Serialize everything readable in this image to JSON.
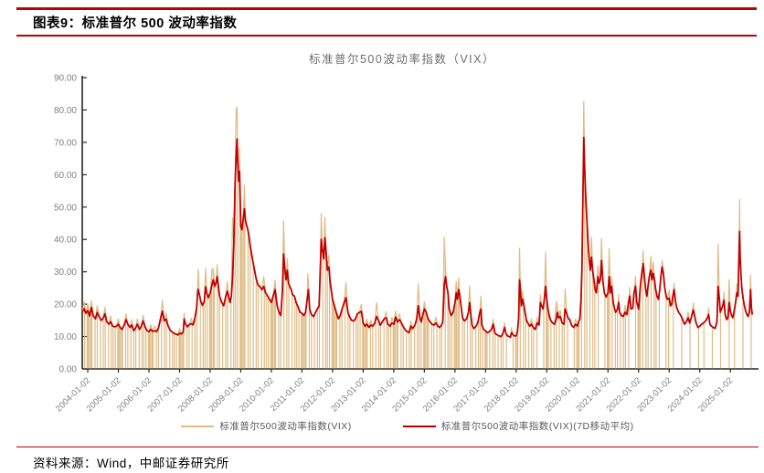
{
  "figure": {
    "caption": "图表9：标准普尔 500 波动率指数"
  },
  "source": {
    "label": "资料来源：Wind，中邮证券研究所"
  },
  "rule_color": "#c00000",
  "chart_data": {
    "type": "line",
    "title": "标准普尔500波动率指数（VIX）",
    "ylim": [
      0,
      90
    ],
    "y_tick_labels": [
      "90.00",
      "80.00",
      "70.00",
      "60.00",
      "50.00",
      "40.00",
      "30.00",
      "20.00",
      "10.00",
      "0.00"
    ],
    "x_tick_labels": [
      "2004-01-02",
      "2005-01-02",
      "2006-01-02",
      "2007-01-02",
      "2008-01-02",
      "2009-01-02",
      "2010-01-02",
      "2011-01-02",
      "2012-01-02",
      "2013-01-02",
      "2014-01-02",
      "2015-01-02",
      "2016-01-02",
      "2017-01-02",
      "2018-01-02",
      "2019-01-02",
      "2020-01-02",
      "2021-01-02",
      "2022-01-02",
      "2023-01-02",
      "2024-01-02",
      "2025-01-02"
    ],
    "x_start": 2003.82,
    "x_end": 2025.74,
    "colors": {
      "raw": "#dfbb85",
      "ma": "#c00000",
      "axis": "#262626",
      "tick_text": "#808080",
      "title_text": "#6e6e6e"
    },
    "legend_position": "bottom",
    "grid": false,
    "series": [
      {
        "name": "标准普尔500波动率指数(VIX)",
        "role": "raw",
        "color": "#dfbb85",
        "local_max_boost": {
          "frac": 0.12,
          "min": 1.5
        },
        "extra_peaks": [
          2004.12,
          21.1,
          2006.44,
          21.2,
          2007.61,
          30.8,
          2007.85,
          31.1,
          2008.055,
          31.0,
          2008.235,
          32.2,
          2008.735,
          46.7,
          2008.845,
          80.1,
          2008.885,
          80.9,
          2009.125,
          56.7,
          2010.405,
          45.8,
          2011.19,
          29.4,
          2011.635,
          48.0,
          2011.755,
          46.9,
          2012.445,
          26.7,
          2013.445,
          20.5,
          2014.805,
          26.3,
          2015.655,
          40.7,
          2016.045,
          27.0,
          2016.125,
          28.1,
          2016.485,
          25.8,
          2016.855,
          22.5,
          2018.115,
          37.3,
          2018.965,
          36.1,
          2019.315,
          20.8,
          2019.605,
          24.6,
          2020.205,
          82.7,
          2020.465,
          40.8,
          2020.795,
          40.3,
          2021.045,
          37.2,
          2021.905,
          28.6,
          2022.155,
          36.5,
          2022.405,
          34.8,
          2022.775,
          33.6,
          2023.165,
          26.5,
          2024.605,
          38.6,
          2024.965,
          27.6,
          2025.295,
          52.3,
          2025.665,
          29.0
        ],
        "zero_drop_groups": [
          {
            "years": [
              2003,
              2016
            ],
            "offsets": [
              0.01,
              0.05,
              0.1,
              0.135,
              0.24,
              0.31,
              0.41,
              0.505,
              0.57,
              0.68,
              0.77,
              0.83,
              0.9,
              0.982
            ]
          },
          {
            "years": [
              2017,
              2022
            ],
            "offsets": [
              0.01,
              0.05,
              0.135,
              0.24,
              0.31,
              0.41,
              0.505,
              0.57,
              0.68,
              0.9,
              0.982
            ]
          },
          {
            "years": [
              2023,
              2025
            ],
            "offsets": [
              0.135,
              0.41,
              0.68,
              0.96
            ]
          }
        ]
      },
      {
        "name": "标准普尔500波动率指数(VIX)(7D移动平均)",
        "role": "ma",
        "color": "#c00000",
        "points": [
          2003.82,
          17.5,
          2003.88,
          18.6,
          2003.94,
          17.2,
          2004.0,
          18.0,
          2004.06,
          16.4,
          2004.12,
          19.0,
          2004.18,
          16.4,
          2004.25,
          15.5,
          2004.31,
          17.4,
          2004.38,
          16.0,
          2004.44,
          15.0,
          2004.5,
          15.6,
          2004.56,
          17.0,
          2004.62,
          14.6,
          2004.69,
          13.8,
          2004.75,
          14.6,
          2004.81,
          13.2,
          2004.88,
          13.0,
          2004.94,
          13.2,
          2005.0,
          13.8,
          2005.06,
          12.8,
          2005.12,
          12.2,
          2005.19,
          13.6,
          2005.25,
          15.2,
          2005.31,
          13.8,
          2005.38,
          12.8,
          2005.44,
          13.6,
          2005.5,
          11.8,
          2005.56,
          12.6,
          2005.62,
          13.8,
          2005.69,
          12.2,
          2005.75,
          13.2,
          2005.81,
          14.8,
          2005.88,
          12.8,
          2005.94,
          11.8,
          2006.0,
          11.5,
          2006.06,
          12.2,
          2006.12,
          11.6,
          2006.19,
          11.8,
          2006.25,
          11.5,
          2006.31,
          12.6,
          2006.38,
          15.6,
          2006.44,
          17.8,
          2006.5,
          14.8,
          2006.56,
          15.4,
          2006.62,
          13.4,
          2006.69,
          12.0,
          2006.75,
          11.5,
          2006.81,
          11.0,
          2006.88,
          10.8,
          2006.94,
          10.5,
          2007.0,
          11.0,
          2007.06,
          10.8,
          2007.12,
          11.4,
          2007.15,
          15.4,
          2007.19,
          14.0,
          2007.25,
          13.0,
          2007.31,
          13.6,
          2007.38,
          14.0,
          2007.44,
          13.6,
          2007.5,
          15.6,
          2007.56,
          19.0,
          2007.6,
          24.6,
          2007.65,
          23.0,
          2007.69,
          21.0,
          2007.75,
          19.6,
          2007.81,
          21.0,
          2007.85,
          25.4,
          2007.9,
          23.0,
          2007.94,
          22.0,
          2008.0,
          23.5,
          2008.06,
          26.0,
          2008.1,
          27.5,
          2008.15,
          25.5,
          2008.19,
          26.5,
          2008.23,
          28.5,
          2008.27,
          25.5,
          2008.31,
          22.5,
          2008.38,
          20.5,
          2008.44,
          19.5,
          2008.5,
          22.0,
          2008.56,
          24.0,
          2008.6,
          22.5,
          2008.65,
          20.5,
          2008.69,
          22.5,
          2008.73,
          28.0,
          2008.77,
          38.0,
          2008.81,
          56.0,
          2008.85,
          66.0,
          2008.88,
          71.0,
          2008.9,
          64.0,
          2008.93,
          58.0,
          2008.96,
          61.0,
          2009.0,
          44.0,
          2009.04,
          43.0,
          2009.08,
          46.5,
          2009.12,
          49.5,
          2009.15,
          46.0,
          2009.19,
          44.5,
          2009.23,
          43.0,
          2009.27,
          41.0,
          2009.31,
          38.0,
          2009.38,
          34.0,
          2009.44,
          31.0,
          2009.5,
          28.0,
          2009.56,
          26.0,
          2009.62,
          25.5,
          2009.69,
          24.5,
          2009.75,
          25.5,
          2009.81,
          23.5,
          2009.88,
          22.5,
          2009.94,
          21.5,
          2010.0,
          20.5,
          2010.06,
          22.5,
          2010.12,
          24.5,
          2010.19,
          19.5,
          2010.25,
          17.5,
          2010.31,
          16.5,
          2010.36,
          24.0,
          2010.4,
          35.5,
          2010.44,
          31.0,
          2010.48,
          27.5,
          2010.52,
          30.5,
          2010.56,
          26.5,
          2010.6,
          25.5,
          2010.65,
          24.5,
          2010.69,
          23.0,
          2010.75,
          22.5,
          2010.81,
          20.5,
          2010.88,
          19.0,
          2010.94,
          17.5,
          2011.0,
          17.2,
          2011.06,
          16.5,
          2011.12,
          17.5,
          2011.17,
          21.5,
          2011.21,
          24.5,
          2011.25,
          18.5,
          2011.31,
          16.8,
          2011.38,
          16.2,
          2011.44,
          17.5,
          2011.5,
          18.5,
          2011.56,
          19.5,
          2011.6,
          31.0,
          2011.63,
          40.0,
          2011.67,
          36.5,
          2011.71,
          34.0,
          2011.75,
          40.5,
          2011.79,
          36.0,
          2011.83,
          30.5,
          2011.88,
          31.5,
          2011.92,
          27.0,
          2012.0,
          21.5,
          2012.06,
          19.5,
          2012.12,
          17.5,
          2012.19,
          15.5,
          2012.25,
          16.5,
          2012.31,
          18.5,
          2012.38,
          20.5,
          2012.44,
          22.0,
          2012.5,
          17.5,
          2012.56,
          16.0,
          2012.62,
          15.0,
          2012.69,
          14.8,
          2012.75,
          15.5,
          2012.81,
          17.0,
          2012.88,
          17.5,
          2012.94,
          17.8,
          2013.0,
          14.2,
          2013.06,
          13.2,
          2013.12,
          13.8,
          2013.19,
          12.8,
          2013.25,
          13.5,
          2013.31,
          13.2,
          2013.38,
          14.2,
          2013.44,
          16.2,
          2013.5,
          15.0,
          2013.56,
          13.5,
          2013.62,
          14.5,
          2013.69,
          15.5,
          2013.75,
          15.8,
          2013.81,
          13.8,
          2013.88,
          13.2,
          2013.94,
          14.2,
          2014.0,
          13.8,
          2014.06,
          16.0,
          2014.12,
          14.5,
          2014.19,
          15.2,
          2014.25,
          14.2,
          2014.31,
          13.0,
          2014.38,
          12.0,
          2014.44,
          11.5,
          2014.5,
          11.2,
          2014.56,
          13.2,
          2014.62,
          12.5,
          2014.69,
          13.5,
          2014.75,
          15.5,
          2014.8,
          19.5,
          2014.85,
          16.0,
          2014.9,
          14.5,
          2014.94,
          16.5,
          2015.0,
          18.5,
          2015.06,
          17.5,
          2015.12,
          15.5,
          2015.19,
          14.5,
          2015.25,
          13.8,
          2015.31,
          13.5,
          2015.38,
          14.2,
          2015.44,
          13.2,
          2015.5,
          12.8,
          2015.56,
          13.5,
          2015.6,
          14.5,
          2015.65,
          26.0,
          2015.69,
          28.5,
          2015.73,
          25.5,
          2015.77,
          23.5,
          2015.81,
          18.5,
          2015.88,
          16.5,
          2015.94,
          17.5,
          2016.0,
          20.5,
          2016.04,
          23.5,
          2016.08,
          21.5,
          2016.12,
          24.5,
          2016.16,
          22.5,
          2016.21,
          18.5,
          2016.25,
          15.8,
          2016.31,
          14.8,
          2016.38,
          15.5,
          2016.44,
          17.5,
          2016.48,
          20.5,
          2016.52,
          16.5,
          2016.56,
          13.5,
          2016.62,
          12.5,
          2016.69,
          13.2,
          2016.75,
          14.5,
          2016.81,
          17.5,
          2016.85,
          18.5,
          2016.88,
          13.5,
          2016.94,
          12.2,
          2017.0,
          11.8,
          2017.06,
          11.2,
          2017.12,
          11.5,
          2017.19,
          12.2,
          2017.25,
          13.8,
          2017.31,
          11.0,
          2017.38,
          10.5,
          2017.44,
          10.2,
          2017.5,
          10.0,
          2017.56,
          10.8,
          2017.62,
          12.8,
          2017.67,
          10.8,
          2017.72,
          10.2,
          2017.77,
          10.0,
          2017.81,
          9.8,
          2017.85,
          11.2,
          2017.9,
          10.5,
          2017.94,
          10.2,
          2018.0,
          10.2,
          2018.04,
          11.5,
          2018.08,
          15.5,
          2018.11,
          27.5,
          2018.14,
          24.5,
          2018.17,
          19.5,
          2018.21,
          21.5,
          2018.25,
          19.8,
          2018.29,
          17.5,
          2018.33,
          15.2,
          2018.38,
          14.2,
          2018.44,
          13.2,
          2018.5,
          13.8,
          2018.56,
          12.8,
          2018.62,
          12.2,
          2018.69,
          14.2,
          2018.75,
          13.5,
          2018.79,
          20.5,
          2018.83,
          19.5,
          2018.88,
          18.5,
          2018.92,
          21.5,
          2018.96,
          25.5,
          2019.0,
          21.5,
          2019.04,
          18.5,
          2019.08,
          16.5,
          2019.12,
          15.2,
          2019.19,
          14.2,
          2019.25,
          13.8,
          2019.31,
          15.5,
          2019.35,
          17.5,
          2019.38,
          15.8,
          2019.44,
          16.2,
          2019.5,
          14.2,
          2019.56,
          13.8,
          2019.6,
          18.5,
          2019.65,
          17.2,
          2019.69,
          15.8,
          2019.75,
          15.2,
          2019.81,
          13.5,
          2019.88,
          12.8,
          2019.94,
          13.8,
          2020.0,
          13.2,
          2020.04,
          14.5,
          2020.08,
          15.5,
          2020.12,
          21.5,
          2020.15,
          31.0,
          2020.18,
          52.0,
          2020.21,
          71.5,
          2020.24,
          62.0,
          2020.27,
          54.0,
          2020.31,
          46.0,
          2020.35,
          39.0,
          2020.38,
          34.5,
          2020.42,
          30.5,
          2020.46,
          34.5,
          2020.5,
          30.5,
          2020.54,
          27.5,
          2020.58,
          24.5,
          2020.62,
          23.5,
          2020.67,
          28.5,
          2020.71,
          26.5,
          2020.75,
          27.5,
          2020.79,
          33.5,
          2020.83,
          27.5,
          2020.88,
          23.5,
          2020.94,
          22.2,
          2021.0,
          23.5,
          2021.04,
          28.5,
          2021.08,
          23.5,
          2021.12,
          25.5,
          2021.17,
          20.5,
          2021.21,
          18.8,
          2021.25,
          17.5,
          2021.31,
          18.5,
          2021.35,
          20.5,
          2021.38,
          17.5,
          2021.44,
          16.5,
          2021.5,
          16.2,
          2021.56,
          17.5,
          2021.62,
          16.8,
          2021.67,
          20.5,
          2021.71,
          22.5,
          2021.75,
          18.5,
          2021.81,
          18.8,
          2021.85,
          23.5,
          2021.9,
          25.5,
          2021.94,
          20.5,
          2022.0,
          18.5,
          2022.04,
          23.5,
          2022.08,
          27.5,
          2022.12,
          30.5,
          2022.15,
          32.5,
          2022.19,
          28.5,
          2022.23,
          24.5,
          2022.27,
          22.5,
          2022.31,
          25.5,
          2022.35,
          28.5,
          2022.4,
          30.5,
          2022.44,
          27.5,
          2022.48,
          29.5,
          2022.52,
          27.5,
          2022.56,
          24.5,
          2022.6,
          22.5,
          2022.65,
          21.5,
          2022.69,
          24.5,
          2022.73,
          28.5,
          2022.77,
          31.5,
          2022.81,
          29.5,
          2022.85,
          25.5,
          2022.9,
          22.5,
          2022.94,
          21.5,
          2023.0,
          21.8,
          2023.04,
          19.5,
          2023.08,
          19.8,
          2023.12,
          22.5,
          2023.16,
          24.5,
          2023.21,
          20.5,
          2023.25,
          18.8,
          2023.31,
          17.5,
          2023.38,
          16.5,
          2023.44,
          15.2,
          2023.5,
          13.8,
          2023.56,
          14.5,
          2023.62,
          15.8,
          2023.67,
          14.2,
          2023.73,
          16.2,
          2023.79,
          18.2,
          2023.83,
          16.5,
          2023.88,
          14.2,
          2023.94,
          12.8,
          2024.0,
          13.2,
          2024.06,
          13.8,
          2024.12,
          14.2,
          2024.19,
          14.8,
          2024.25,
          15.8,
          2024.29,
          16.8,
          2024.33,
          13.8,
          2024.38,
          13.2,
          2024.44,
          12.8,
          2024.5,
          12.5,
          2024.56,
          14.5,
          2024.6,
          25.5,
          2024.64,
          21.5,
          2024.67,
          17.5,
          2024.71,
          18.5,
          2024.75,
          19.5,
          2024.79,
          21.2,
          2024.83,
          16.8,
          2024.88,
          15.2,
          2024.92,
          15.8,
          2024.96,
          20.5,
          2025.0,
          17.8,
          2025.04,
          16.5,
          2025.08,
          15.8,
          2025.12,
          17.5,
          2025.17,
          20.5,
          2025.21,
          23.5,
          2025.25,
          22.5,
          2025.28,
          35.0,
          2025.3,
          42.5,
          2025.32,
          34.5,
          2025.35,
          28.5,
          2025.38,
          24.5,
          2025.42,
          21.5,
          2025.46,
          19.5,
          2025.5,
          17.8,
          2025.54,
          16.8,
          2025.58,
          16.2,
          2025.62,
          17.5,
          2025.66,
          24.5,
          2025.69,
          18.5,
          2025.72,
          16.8
        ]
      }
    ]
  }
}
